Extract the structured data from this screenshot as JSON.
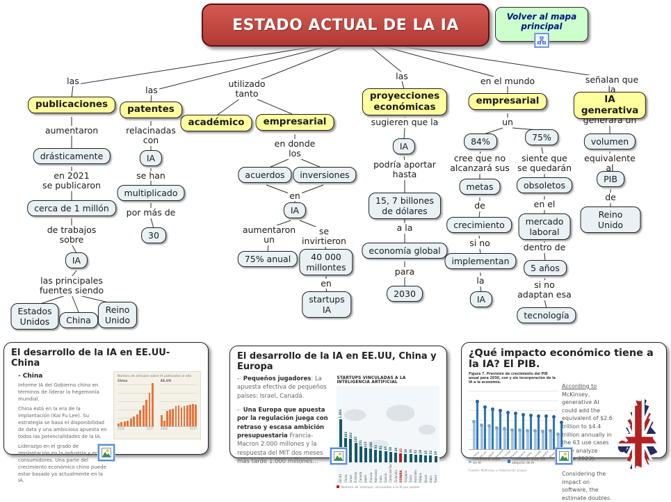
{
  "header": {
    "title": "ESTADO ACTUAL DE LA IA",
    "back_button": "Volver al mapa\nprincipal"
  },
  "nodes": {
    "l1a": "las",
    "b1": "publicaciones",
    "l1b": "aumentaron",
    "n1a": "drásticamente",
    "l1c": "en 2021\nse publicaron",
    "n1b": "cerca de 1 millón",
    "l1d": "de trabajos\nsobre",
    "n1c": "IA",
    "l1e": "las principales\nfuentes siendo",
    "n1d": "Estados\nUnidos",
    "n1e": "China",
    "n1f": "Reino\nUnido",
    "l2a": "las",
    "b2": "patentes",
    "l2b": "relacinadas\ncon",
    "n2a": "IA",
    "l2c": "se han",
    "n2b": "multiplicado",
    "l2d": "por más de",
    "n2c": "30",
    "l3a": "utilizado\ntanto",
    "b3a": "académico",
    "b3b": "empresarial",
    "l3b": "en donde\nlos",
    "n3a": "acuerdos",
    "n3b": "inversiones",
    "l3c": "en",
    "n3c": "IA",
    "l3d": "aumentaron\nun",
    "n3d": "75% anual",
    "l3e": "se\ninvirtieron",
    "n3e": "40 000\nmillontes",
    "l3f": "en",
    "n3f": "startups\nIA",
    "l4a": "las",
    "b4": "proyecciones\neconómicas",
    "l4b": "sugieren que la",
    "n4a": "IA",
    "l4c": "podría aportar\nhasta",
    "n4b": "15, 7 billones\nde dólares",
    "l4d": "a la",
    "n4c": "economía global",
    "l4e": "para",
    "n4d": "2030",
    "l5a": "en el mundo",
    "b5": "empresarial",
    "l5b": "un",
    "n5a": "84%",
    "n5b": "75%",
    "l5c": "cree que no\nalcanzará sus",
    "n5c": "metas",
    "l5d": "de",
    "n5d": "crecimiento",
    "l5e": "si no",
    "n5e": "implementan",
    "l5f": "la",
    "n5f": "IA",
    "l5g": "siente que\nse quedarán",
    "n5g": "obsoletos",
    "l5h": "en el",
    "n5h": "mercado\nlaboral",
    "l5i": "dentro de",
    "n5i": "5 años",
    "l5j": "si no\nadaptan esa",
    "n5j": "tecnología",
    "l6a": "señalan que la",
    "b6": "IA generativa",
    "l6b": "generará un",
    "n6a": "volumen",
    "l6c": "equivalente al",
    "n6b": "PIB",
    "l6d": "de",
    "n6c": "Reino Unido"
  },
  "cards": {
    "card1": {
      "title": "El desarrollo de la IA en EE.UU- China",
      "heading": "China",
      "p1": "Informe IA del Gobierno chino en términos de liderar la hegemonía mundial.",
      "p2": "China está en la era de la implantación (Kai Fu Lee). Su estrategia se basa el disponibilidad de data y una ambiciosa apuesta en todos las potencialidades de la IA.",
      "p3": "Liderazgo en el grado de implantación en la industria y en consumidores. Una parte del crecimiento económico chino puede estar basado ya actualmente en la IA."
    },
    "card2": {
      "title": "El desarrollo de la IA en EE.UU, China y Europa",
      "b1_bold": "Pequeños jugadores",
      "b1_rest": ": La apuesta efectiva de pequeños países: Israel, Canadá.",
      "b2_bold": "Una Europa que apuesta por la regulación juega con retraso y escasa ambición presupuestaria",
      "b2_rest": " Francia- Macron 2.000 millones y la respuesta del MIT dos meses más tarde 1.000 millones..."
    },
    "card3": {
      "title": "¿Qué impacto económico tiene a la IA? El PIB.",
      "p1_underline": "According to",
      "p1": " McKinsey, generative AI could add the equivalent of $2.6 trillion to $4.4 trillion annually in the 63 use cases they analyze (june 2023).",
      "p2": "Considering the impact on software, the estimate doubles."
    }
  },
  "chart_data": [
    {
      "type": "bar",
      "title": "Número de artículos sobre IA publicados al año",
      "panels": [
        "China",
        "EE.UU"
      ],
      "series": [
        {
          "name": "China",
          "values": [
            3,
            4,
            5,
            6,
            8,
            10,
            13,
            17,
            22,
            28,
            36,
            46
          ]
        },
        {
          "name": "EE.UU",
          "values": [
            12,
            6,
            16,
            18,
            19,
            21,
            22,
            20,
            21,
            22,
            23,
            24,
            23
          ]
        }
      ],
      "x_range": [
        "2000",
        "2017"
      ],
      "colors": {
        "bar": "#E8743B",
        "background": "#F4F1E8"
      }
    },
    {
      "type": "bar",
      "title": "STARTUPS VINCULADAS A LA INTELIGENCIA ARTIFICIAL",
      "categories": [
        "EE.UU",
        "China",
        "Israel",
        "R.Unido",
        "Canadá",
        "Japón",
        "Francia",
        "Alemania",
        "India",
        "Suecia",
        "Corea del Sur",
        "Finlandia",
        "ESPAÑA",
        "Singapur",
        "Suiza",
        "Australia",
        "P.Bajos",
        "Brasil",
        "Italia",
        "Rusia"
      ],
      "values": [
        1393,
        383,
        362,
        245,
        151,
        122,
        108,
        93,
        82,
        65,
        58,
        48,
        45,
        39,
        36,
        32,
        29,
        25,
        22,
        19
      ],
      "highlight_index": 12,
      "footnote": "Número de 'startups' vinculadas a la IA por países",
      "colors": {
        "bar": "#14576B",
        "highlight": "#C11B17"
      }
    },
    {
      "type": "bar",
      "title": "Figura 7. Previsión de crecimiento del PIB anual para 2030, con y sin incorporación de la IA a la economía.",
      "categories": [
        "China",
        "EE.UU",
        "Japón",
        "Alemania",
        "R.Unido",
        "Francia",
        "Suecia",
        "Italia",
        "Canadá",
        "España",
        "Brasil",
        "Rusia"
      ],
      "series": [
        {
          "name": "Crecimiento anual sin IA",
          "values": [
            3.0,
            2.6,
            2.5,
            2.3,
            2.2,
            2.1,
            2.1,
            2.0,
            2.0,
            1.9,
            2.0,
            1.6
          ]
        },
        {
          "name": "Crecimiento anual con adopción de IA",
          "values": [
            5.2,
            4.6,
            4.4,
            4.2,
            4.0,
            3.9,
            3.8,
            3.7,
            3.6,
            3.6,
            3.5,
            2.9
          ]
        }
      ],
      "ylim": [
        0,
        6
      ],
      "source": "Fuente: McKinsey y elaboración propia",
      "colors": {
        "light": "#9DC3E6",
        "dark": "#2E75B6"
      }
    }
  ]
}
